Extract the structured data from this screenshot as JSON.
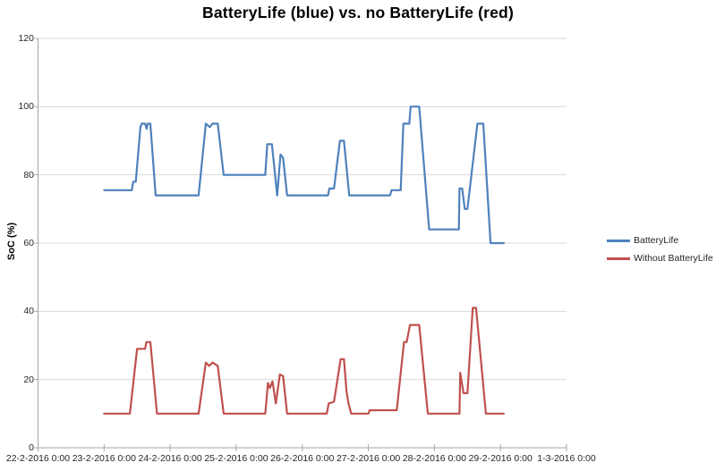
{
  "title": "BatteryLife (blue) vs. no BatteryLife (red)",
  "y_axis": {
    "label": "SoC (%)",
    "ticks": [
      0,
      20,
      40,
      60,
      80,
      100,
      120
    ],
    "min": 0,
    "max": 120
  },
  "x_axis": {
    "tick_labels": [
      "22-2-2016 0:00",
      "23-2-2016 0:00",
      "24-2-2016 0:00",
      "25-2-2016 0:00",
      "26-2-2016 0:00",
      "27-2-2016 0:00",
      "28-2-2016 0:00",
      "29-2-2016 0:00",
      "1-3-2016 0:00"
    ]
  },
  "legend": {
    "position": "right",
    "items": [
      {
        "label": "BatteryLife",
        "color": "#4F81BD"
      },
      {
        "label": "Without BatteryLife",
        "color": "#C0504D"
      }
    ]
  },
  "colors": {
    "background": "#FFFFFF",
    "gridline": "#D9D9D9",
    "axis": "#A6A6A6",
    "text": "#262626",
    "series_blue": "#4F81BD",
    "series_red": "#C0504D"
  },
  "chart_data": {
    "type": "line",
    "title": "BatteryLife (blue) vs. no BatteryLife (red)",
    "xlabel": "",
    "ylabel": "SoC (%)",
    "ylim": [
      0,
      120
    ],
    "xlim_days": [
      0,
      8
    ],
    "x_unit": "days since 22-2-2016 0:00",
    "x_tick_labels": [
      "22-2-2016 0:00",
      "23-2-2016 0:00",
      "24-2-2016 0:00",
      "25-2-2016 0:00",
      "26-2-2016 0:00",
      "27-2-2016 0:00",
      "28-2-2016 0:00",
      "29-2-2016 0:00",
      "1-3-2016 0:00"
    ],
    "grid": true,
    "legend_position": "right",
    "series": [
      {
        "name": "BatteryLife",
        "color": "#4F81BD",
        "points": [
          [
            1.0,
            75.5
          ],
          [
            1.42,
            75.5
          ],
          [
            1.44,
            78
          ],
          [
            1.48,
            78
          ],
          [
            1.55,
            94
          ],
          [
            1.57,
            95
          ],
          [
            1.62,
            95
          ],
          [
            1.645,
            93.5
          ],
          [
            1.66,
            95
          ],
          [
            1.7,
            95
          ],
          [
            1.78,
            74
          ],
          [
            2.43,
            74
          ],
          [
            2.54,
            95
          ],
          [
            2.6,
            94
          ],
          [
            2.64,
            95
          ],
          [
            2.72,
            95
          ],
          [
            2.81,
            80
          ],
          [
            3.44,
            80
          ],
          [
            3.47,
            89
          ],
          [
            3.54,
            89
          ],
          [
            3.62,
            74
          ],
          [
            3.67,
            86
          ],
          [
            3.71,
            85
          ],
          [
            3.77,
            74
          ],
          [
            4.39,
            74
          ],
          [
            4.41,
            76
          ],
          [
            4.48,
            76
          ],
          [
            4.57,
            90
          ],
          [
            4.63,
            90
          ],
          [
            4.71,
            74
          ],
          [
            5.33,
            74
          ],
          [
            5.35,
            75.5
          ],
          [
            5.49,
            75.5
          ],
          [
            5.53,
            95
          ],
          [
            5.62,
            95
          ],
          [
            5.64,
            100
          ],
          [
            5.77,
            100
          ],
          [
            5.92,
            64
          ],
          [
            6.37,
            64
          ],
          [
            6.38,
            76
          ],
          [
            6.42,
            76
          ],
          [
            6.46,
            70
          ],
          [
            6.5,
            70
          ],
          [
            6.65,
            95
          ],
          [
            6.74,
            95
          ],
          [
            6.85,
            60
          ],
          [
            7.05,
            60
          ]
        ]
      },
      {
        "name": "Without BatteryLife",
        "color": "#C0504D",
        "points": [
          [
            1.0,
            10
          ],
          [
            1.39,
            10
          ],
          [
            1.5,
            29
          ],
          [
            1.62,
            29
          ],
          [
            1.64,
            31
          ],
          [
            1.7,
            31
          ],
          [
            1.8,
            10
          ],
          [
            2.43,
            10
          ],
          [
            2.54,
            25
          ],
          [
            2.59,
            24
          ],
          [
            2.64,
            25
          ],
          [
            2.72,
            24
          ],
          [
            2.81,
            10
          ],
          [
            3.44,
            10
          ],
          [
            3.48,
            19
          ],
          [
            3.51,
            17.5
          ],
          [
            3.55,
            19.5
          ],
          [
            3.6,
            13
          ],
          [
            3.66,
            21.5
          ],
          [
            3.71,
            21
          ],
          [
            3.77,
            10
          ],
          [
            4.37,
            10
          ],
          [
            4.4,
            13
          ],
          [
            4.48,
            13.5
          ],
          [
            4.58,
            26
          ],
          [
            4.63,
            26
          ],
          [
            4.67,
            16.5
          ],
          [
            4.7,
            13
          ],
          [
            4.74,
            10
          ],
          [
            5.0,
            10
          ],
          [
            5.02,
            11
          ],
          [
            5.43,
            11
          ],
          [
            5.54,
            31
          ],
          [
            5.58,
            31
          ],
          [
            5.63,
            36
          ],
          [
            5.77,
            36
          ],
          [
            5.9,
            10
          ],
          [
            6.38,
            10
          ],
          [
            6.39,
            22
          ],
          [
            6.44,
            16
          ],
          [
            6.5,
            16
          ],
          [
            6.58,
            41
          ],
          [
            6.63,
            41
          ],
          [
            6.78,
            10
          ],
          [
            7.05,
            10
          ]
        ]
      }
    ]
  }
}
